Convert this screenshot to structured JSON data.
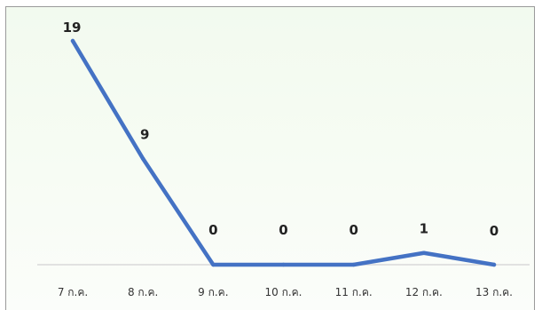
{
  "chart_data": {
    "type": "line",
    "categories": [
      "7 ก.ค.",
      "8 ก.ค.",
      "9 ก.ค.",
      "10 ก.ค.",
      "11 ก.ค.",
      "12 ก.ค.",
      "13 ก.ค."
    ],
    "series": [
      {
        "values": [
          19,
          9,
          0,
          0,
          0,
          1,
          0
        ]
      }
    ],
    "ylim": [
      0,
      19
    ],
    "grid": false,
    "show_data_labels": true,
    "line_color": "#4472c4",
    "baseline_color": "#d9d9d9",
    "background_color": "#f4fbf1"
  }
}
